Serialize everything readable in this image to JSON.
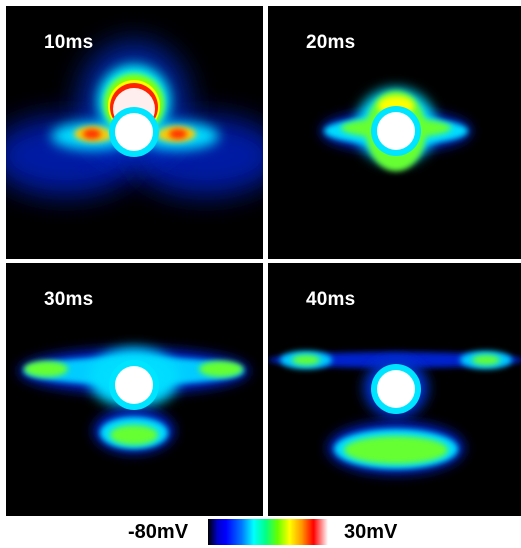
{
  "panels": [
    {
      "label": "10ms"
    },
    {
      "label": "20ms"
    },
    {
      "label": "30ms"
    },
    {
      "label": "40ms"
    }
  ],
  "colorbar": {
    "min_label": "-80mV",
    "max_label": "30mV",
    "colors": [
      "#000000",
      "#0000ff",
      "#00ffff",
      "#00ff00",
      "#ffff00",
      "#ff0000",
      "#ffffff"
    ]
  }
}
